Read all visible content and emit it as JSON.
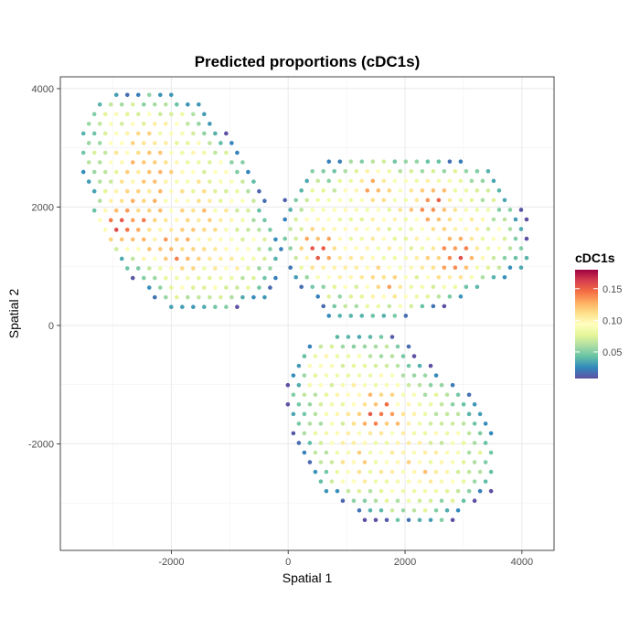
{
  "chart_data": {
    "type": "scatter",
    "title": "Predicted proportions (cDC1s)",
    "xlabel": "Spatial 1",
    "ylabel": "Spatial 2",
    "xlim": [
      -3900,
      4550
    ],
    "ylim": [
      -3800,
      4200
    ],
    "x_ticks": [
      -2000,
      0,
      2000,
      4000
    ],
    "y_ticks": [
      -2000,
      0,
      2000,
      4000
    ],
    "x_tick_labels": [
      "-2000",
      "0",
      "2000",
      "4000"
    ],
    "y_tick_labels": [
      "-2000",
      "0",
      "2000",
      "4000"
    ],
    "grid": true,
    "legend": {
      "title": "cDC1s",
      "position": "right",
      "color_range": [
        0.008,
        0.18
      ],
      "ticks": [
        0.05,
        0.1,
        0.15
      ],
      "tick_labels": [
        "0.05",
        "0.10",
        "0.15"
      ],
      "palette": [
        "#5E4FA2",
        "#3288BD",
        "#66C2A5",
        "#ABDDA4",
        "#E6F598",
        "#FFFFBF",
        "#FEE08B",
        "#FDAE61",
        "#F46D43",
        "#D53E4F",
        "#9E0142"
      ]
    },
    "clusters": [
      {
        "name": "",
        "spot_spacing": 188,
        "center": [
          -1750,
          1800
        ],
        "outline": [
          [
            -3500,
            3550
          ],
          [
            -3100,
            3900
          ],
          [
            -2400,
            4000
          ],
          [
            -1600,
            3850
          ],
          [
            -1200,
            3400
          ],
          [
            -650,
            2800
          ],
          [
            -400,
            2100
          ],
          [
            -50,
            1200
          ],
          [
            -300,
            500
          ],
          [
            -1000,
            200
          ],
          [
            -1900,
            150
          ],
          [
            -2600,
            700
          ],
          [
            -3100,
            1300
          ],
          [
            -3400,
            2100
          ],
          [
            -3600,
            2900
          ]
        ],
        "base": 0.095,
        "hot_spots": [
          [
            -2850,
            1700,
            0.17
          ],
          [
            -2500,
            2050,
            0.13
          ],
          [
            -2000,
            1300,
            0.14
          ],
          [
            -2400,
            2900,
            0.13
          ],
          [
            -1500,
            1700,
            0.12
          ]
        ]
      },
      {
        "name": "",
        "spot_spacing": 188,
        "center": [
          2000,
          1650
        ],
        "outline": [
          [
            350,
            2700
          ],
          [
            1200,
            2900
          ],
          [
            2800,
            2850
          ],
          [
            3500,
            2650
          ],
          [
            4100,
            1800
          ],
          [
            4150,
            1000
          ],
          [
            3400,
            650
          ],
          [
            2700,
            300
          ],
          [
            1500,
            0
          ],
          [
            700,
            150
          ],
          [
            100,
            750
          ],
          [
            -150,
            1600
          ],
          [
            -50,
            2150
          ]
        ],
        "base": 0.09,
        "hot_spots": [
          [
            550,
            1300,
            0.15
          ],
          [
            1500,
            2400,
            0.13
          ],
          [
            2850,
            1150,
            0.15
          ],
          [
            2450,
            2100,
            0.14
          ],
          [
            1750,
            700,
            0.12
          ]
        ]
      },
      {
        "name": "",
        "spot_spacing": 188,
        "center": [
          1600,
          -1650
        ],
        "outline": [
          [
            1000,
            -50
          ],
          [
            1800,
            -120
          ],
          [
            2400,
            -650
          ],
          [
            3100,
            -1100
          ],
          [
            3600,
            -2050
          ],
          [
            3500,
            -2800
          ],
          [
            2600,
            -3450
          ],
          [
            1300,
            -3300
          ],
          [
            500,
            -2700
          ],
          [
            100,
            -1950
          ],
          [
            -100,
            -1200
          ],
          [
            250,
            -400
          ]
        ],
        "base": 0.085,
        "hot_spots": [
          [
            1550,
            -1500,
            0.15
          ],
          [
            1200,
            -2300,
            0.11
          ],
          [
            2200,
            -2500,
            0.11
          ],
          [
            650,
            -700,
            0.1
          ]
        ]
      }
    ]
  }
}
